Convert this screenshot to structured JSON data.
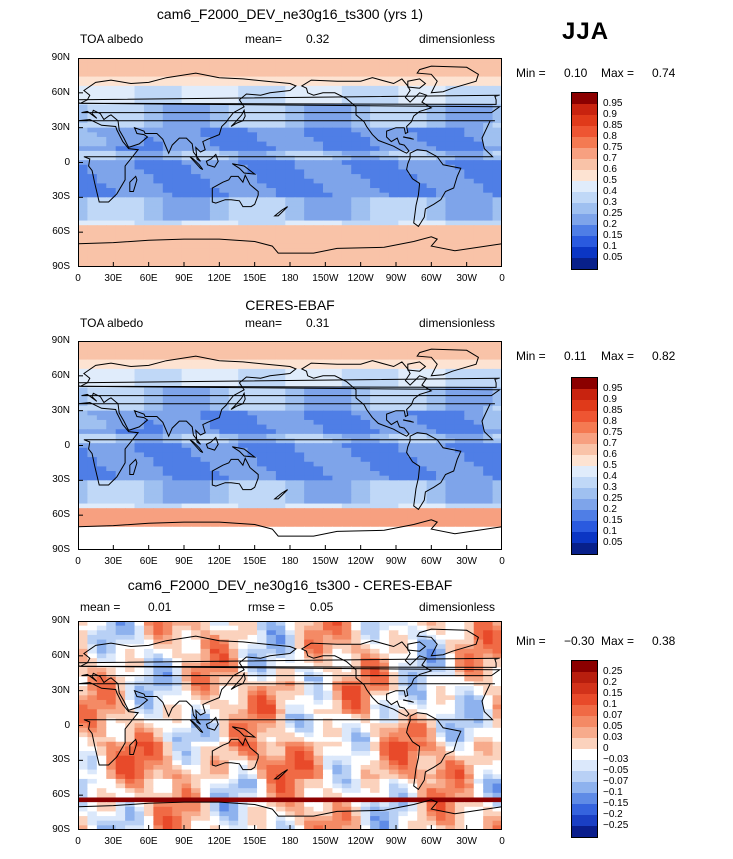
{
  "season": "JJA",
  "panels": [
    {
      "title": "cam6_F2000_DEV_ne30g16_ts300 (yrs 1)",
      "left_label": "TOA albedo",
      "mid_label": "mean=",
      "mid_value": "0.32",
      "right_label": "dimensionless",
      "min_label": "Min =",
      "min_value": "0.10",
      "max_label": "Max =",
      "max_value": "0.74",
      "levels": [
        "0.95",
        "0.9",
        "0.85",
        "0.8",
        "0.75",
        "0.7",
        "0.6",
        "0.5",
        "0.4",
        "0.3",
        "0.25",
        "0.2",
        "0.15",
        "0.1",
        "0.05"
      ],
      "colors": [
        "#8b0000",
        "#c8230f",
        "#e03a1a",
        "#ee5532",
        "#f47a52",
        "#f7a080",
        "#f9c3a8",
        "#fde3d2",
        "#e0ecfb",
        "#c0d8f7",
        "#9fc0f0",
        "#7ea4ea",
        "#4f7ee6",
        "#2a5adf",
        "#0b36c4",
        "#08208a"
      ],
      "map_style": "model"
    },
    {
      "title": "CERES-EBAF",
      "left_label": "TOA albedo",
      "mid_label": "mean=",
      "mid_value": "0.31",
      "right_label": "dimensionless",
      "min_label": "Min =",
      "min_value": "0.11",
      "max_label": "Max =",
      "max_value": "0.82",
      "levels": [
        "0.95",
        "0.9",
        "0.85",
        "0.8",
        "0.75",
        "0.7",
        "0.6",
        "0.5",
        "0.4",
        "0.3",
        "0.25",
        "0.2",
        "0.15",
        "0.1",
        "0.05"
      ],
      "colors": [
        "#8b0000",
        "#c8230f",
        "#e03a1a",
        "#ee5532",
        "#f47a52",
        "#f7a080",
        "#f9c3a8",
        "#fde3d2",
        "#e0ecfb",
        "#c0d8f7",
        "#9fc0f0",
        "#7ea4ea",
        "#4f7ee6",
        "#2a5adf",
        "#0b36c4",
        "#08208a"
      ],
      "map_style": "obs"
    },
    {
      "title": "cam6_F2000_DEV_ne30g16_ts300 - CERES-EBAF",
      "left_label": "mean =",
      "left_value": "0.01",
      "mid_label": "rmse =",
      "mid_value": "0.05",
      "right_label": "dimensionless",
      "min_label": "Min =",
      "min_value": "−0.30",
      "max_label": "Max =",
      "max_value": "0.38",
      "levels": [
        "0.25",
        "0.2",
        "0.15",
        "0.1",
        "0.07",
        "0.05",
        "0.03",
        "0",
        "−0.03",
        "−0.05",
        "−0.07",
        "−0.1",
        "−0.15",
        "−0.2",
        "−0.25"
      ],
      "colors": [
        "#8b0000",
        "#b81e0e",
        "#d2321a",
        "#e84a2a",
        "#f06a45",
        "#f48a65",
        "#f7ab8c",
        "#fbd2bd",
        "#ffffff",
        "#dbe8fb",
        "#b8d0f5",
        "#8eb2ee",
        "#5f8be6",
        "#3563de",
        "#1a3fc4",
        "#0a1e8c"
      ],
      "map_style": "diff"
    }
  ],
  "lat_labels": [
    "90N",
    "60N",
    "30N",
    "0",
    "30S",
    "60S",
    "90S"
  ],
  "lon_labels": [
    "0",
    "30E",
    "60E",
    "90E",
    "120E",
    "150E",
    "180",
    "150W",
    "120W",
    "90W",
    "60W",
    "30W",
    "0"
  ]
}
